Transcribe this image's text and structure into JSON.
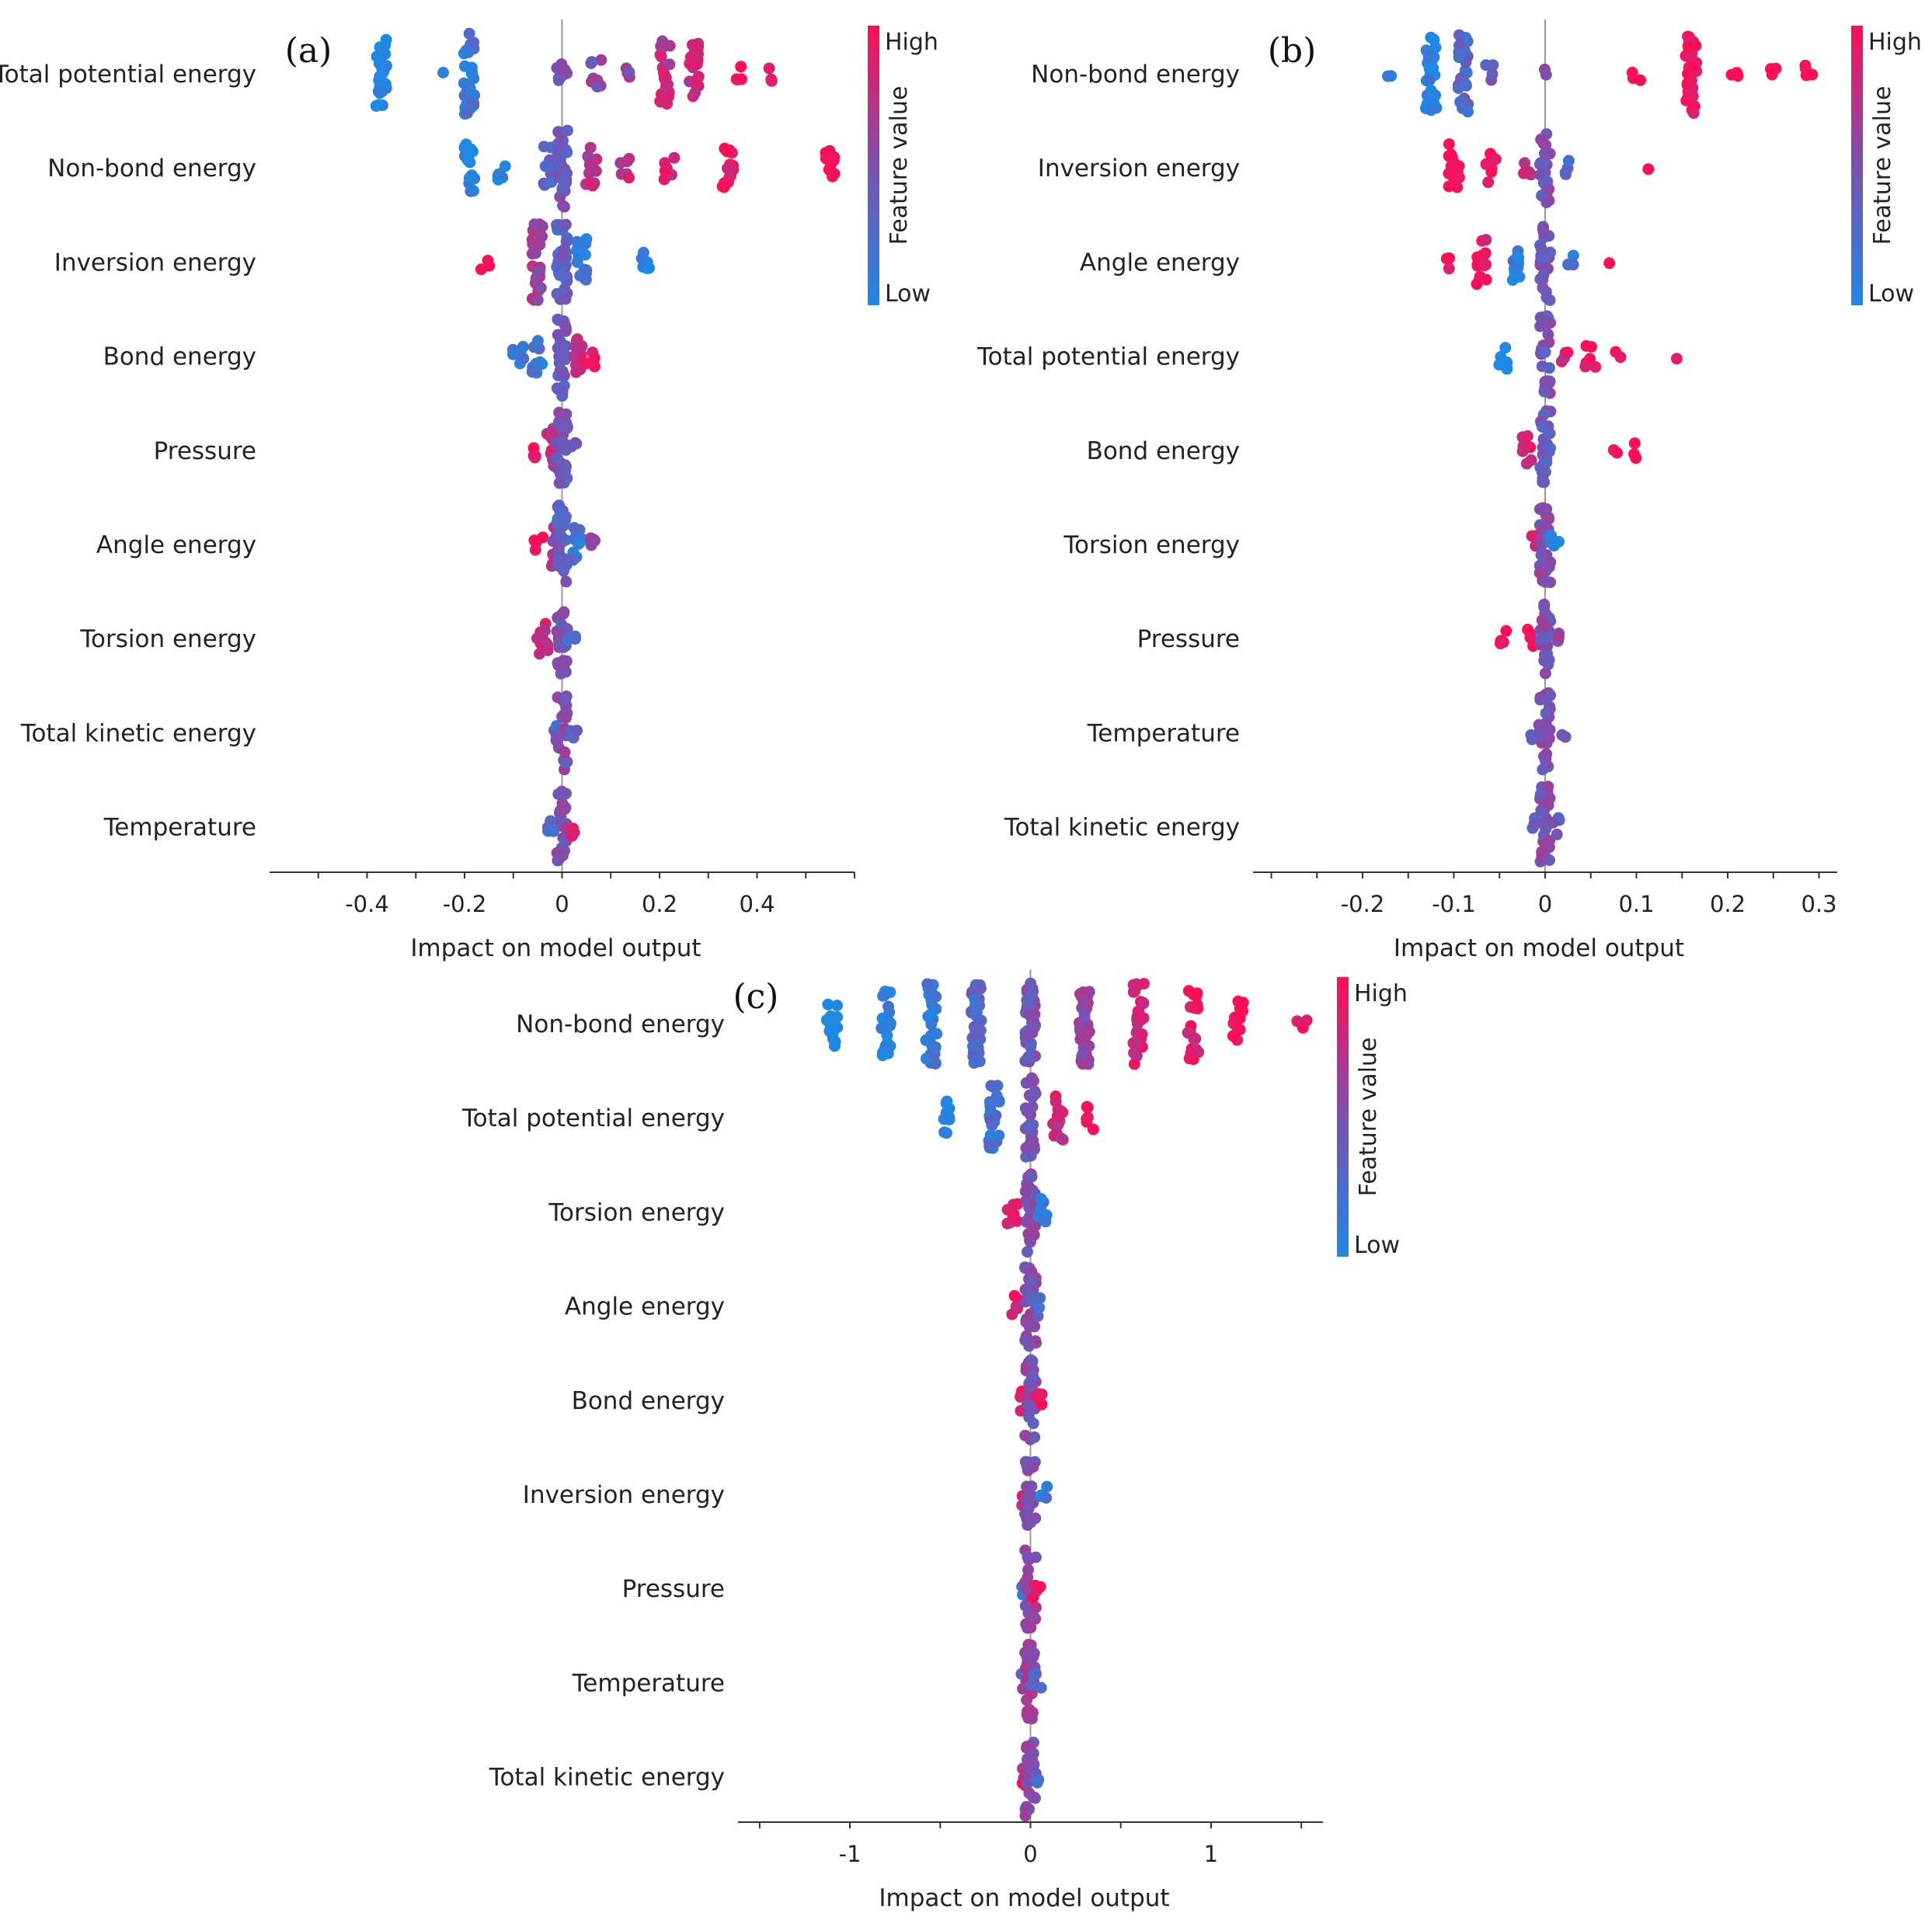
{
  "chart_data": [
    {
      "type": "scatter",
      "subtype": "beeswarm",
      "panel": "(a)",
      "xlabel": "Impact on model output",
      "xlim": [
        -0.6,
        0.6
      ],
      "xticks": [
        -0.4,
        -0.2,
        0,
        0.2,
        0.4
      ],
      "xtick_labels": [
        "-0.4",
        "-0.2",
        "0",
        "0.2",
        "0.4"
      ],
      "colorbar": {
        "title": "Feature value",
        "high": "High",
        "low": "Low"
      },
      "features": [
        {
          "name": "Total potential energy",
          "clusters": [
            [
              -0.37,
              0.0,
              26
            ],
            [
              -0.24,
              0.0,
              1
            ],
            [
              -0.19,
              0.15,
              30
            ],
            [
              0.0,
              0.5,
              8
            ],
            [
              0.07,
              0.55,
              8
            ],
            [
              0.14,
              0.6,
              4
            ],
            [
              0.21,
              0.75,
              22
            ],
            [
              0.27,
              0.8,
              20
            ],
            [
              0.36,
              0.95,
              4
            ],
            [
              0.42,
              1.0,
              3
            ]
          ]
        },
        {
          "name": "Non-bond energy",
          "clusters": [
            [
              -0.19,
              0.05,
              16
            ],
            [
              -0.12,
              0.05,
              6
            ],
            [
              -0.03,
              0.3,
              14
            ],
            [
              0.0,
              0.45,
              30
            ],
            [
              0.06,
              0.7,
              14
            ],
            [
              0.13,
              0.8,
              6
            ],
            [
              0.22,
              0.9,
              6
            ],
            [
              0.34,
              0.95,
              14
            ],
            [
              0.55,
              1.0,
              10
            ]
          ]
        },
        {
          "name": "Inversion energy",
          "clusters": [
            [
              -0.16,
              1.0,
              3
            ],
            [
              -0.05,
              0.65,
              30
            ],
            [
              0.0,
              0.35,
              40
            ],
            [
              0.04,
              0.15,
              16
            ],
            [
              0.17,
              0.0,
              7
            ]
          ]
        },
        {
          "name": "Bond energy",
          "clusters": [
            [
              -0.09,
              0.2,
              6
            ],
            [
              -0.05,
              0.15,
              10
            ],
            [
              0.0,
              0.4,
              32
            ],
            [
              0.03,
              0.8,
              10
            ],
            [
              0.06,
              0.9,
              5
            ]
          ]
        },
        {
          "name": "Pressure",
          "clusters": [
            [
              -0.06,
              1.0,
              4
            ],
            [
              -0.02,
              0.75,
              14
            ],
            [
              0.0,
              0.45,
              26
            ],
            [
              0.02,
              0.4,
              4
            ]
          ]
        },
        {
          "name": "Angle energy",
          "clusters": [
            [
              -0.05,
              1.0,
              4
            ],
            [
              -0.01,
              0.6,
              14
            ],
            [
              0.0,
              0.35,
              30
            ],
            [
              0.03,
              0.2,
              10
            ],
            [
              0.06,
              0.5,
              4
            ]
          ]
        },
        {
          "name": "Torsion energy",
          "clusters": [
            [
              -0.04,
              0.8,
              10
            ],
            [
              0.0,
              0.5,
              26
            ],
            [
              0.02,
              0.15,
              4
            ]
          ]
        },
        {
          "name": "Total kinetic energy",
          "clusters": [
            [
              -0.02,
              0.3,
              4
            ],
            [
              0.0,
              0.5,
              26
            ],
            [
              0.02,
              0.4,
              4
            ]
          ]
        },
        {
          "name": "Temperature",
          "clusters": [
            [
              -0.02,
              0.3,
              4
            ],
            [
              0.0,
              0.5,
              26
            ],
            [
              0.02,
              0.9,
              4
            ]
          ]
        }
      ]
    },
    {
      "type": "scatter",
      "subtype": "beeswarm",
      "panel": "(b)",
      "xlabel": "Impact on model output",
      "xlim": [
        -0.32,
        0.32
      ],
      "xticks": [
        -0.2,
        -0.1,
        0,
        0.1,
        0.2,
        0.3
      ],
      "xtick_labels": [
        "-0.2",
        "-0.1",
        "0",
        "0.1",
        "0.2",
        "0.3"
      ],
      "colorbar": {
        "title": "Feature value",
        "high": "High",
        "low": "Low"
      },
      "features": [
        {
          "name": "Non-bond energy",
          "clusters": [
            [
              -0.17,
              0.05,
              2
            ],
            [
              -0.125,
              0.05,
              30
            ],
            [
              -0.09,
              0.3,
              34
            ],
            [
              -0.06,
              0.35,
              4
            ],
            [
              0.0,
              0.5,
              2
            ],
            [
              0.1,
              1.0,
              3
            ],
            [
              0.16,
              0.95,
              34
            ],
            [
              0.21,
              1.0,
              3
            ],
            [
              0.25,
              1.0,
              3
            ],
            [
              0.29,
              1.0,
              4
            ]
          ]
        },
        {
          "name": "Inversion energy",
          "clusters": [
            [
              -0.1,
              1.0,
              16
            ],
            [
              -0.06,
              0.95,
              8
            ],
            [
              -0.02,
              0.8,
              4
            ],
            [
              0.0,
              0.45,
              26
            ],
            [
              0.02,
              0.3,
              4
            ],
            [
              0.11,
              1.0,
              1
            ]
          ]
        },
        {
          "name": "Angle energy",
          "clusters": [
            [
              -0.11,
              1.0,
              3
            ],
            [
              -0.07,
              0.95,
              14
            ],
            [
              -0.03,
              0.1,
              14
            ],
            [
              0.0,
              0.45,
              26
            ],
            [
              0.03,
              0.2,
              4
            ],
            [
              0.07,
              1.0,
              1
            ]
          ]
        },
        {
          "name": "Total potential energy",
          "clusters": [
            [
              -0.045,
              0.0,
              8
            ],
            [
              0.0,
              0.45,
              28
            ],
            [
              0.02,
              0.8,
              4
            ],
            [
              0.05,
              0.9,
              6
            ],
            [
              0.08,
              0.9,
              2
            ],
            [
              0.14,
              1.0,
              1
            ]
          ]
        },
        {
          "name": "Bond energy",
          "clusters": [
            [
              -0.02,
              0.85,
              8
            ],
            [
              0.0,
              0.4,
              28
            ],
            [
              0.08,
              1.0,
              2
            ],
            [
              0.1,
              1.0,
              3
            ]
          ]
        },
        {
          "name": "Torsion energy",
          "clusters": [
            [
              -0.01,
              0.9,
              4
            ],
            [
              0.0,
              0.5,
              28
            ],
            [
              0.01,
              0.1,
              4
            ]
          ]
        },
        {
          "name": "Pressure",
          "clusters": [
            [
              -0.045,
              1.0,
              4
            ],
            [
              -0.015,
              0.95,
              4
            ],
            [
              0.0,
              0.5,
              28
            ],
            [
              0.02,
              0.6,
              3
            ]
          ]
        },
        {
          "name": "Temperature",
          "clusters": [
            [
              -0.01,
              0.4,
              4
            ],
            [
              0.0,
              0.5,
              28
            ],
            [
              0.02,
              0.4,
              2
            ]
          ]
        },
        {
          "name": "Total kinetic energy",
          "clusters": [
            [
              -0.01,
              0.4,
              4
            ],
            [
              0.0,
              0.5,
              28
            ],
            [
              0.01,
              0.4,
              4
            ]
          ]
        }
      ]
    },
    {
      "type": "scatter",
      "subtype": "beeswarm",
      "panel": "(c)",
      "xlabel": "Impact on model output",
      "xlim": [
        -1.62,
        1.62
      ],
      "xticks": [
        -1,
        0,
        1
      ],
      "xtick_labels": [
        "-1",
        "0",
        "1"
      ],
      "colorbar": {
        "title": "Feature value",
        "high": "High",
        "low": "Low"
      },
      "features": [
        {
          "name": "Non-bond energy",
          "clusters": [
            [
              -1.1,
              0.0,
              14
            ],
            [
              -0.8,
              0.05,
              22
            ],
            [
              -0.55,
              0.12,
              30
            ],
            [
              -0.3,
              0.3,
              40
            ],
            [
              0.0,
              0.45,
              44
            ],
            [
              0.3,
              0.6,
              40
            ],
            [
              0.6,
              0.8,
              30
            ],
            [
              0.9,
              0.92,
              24
            ],
            [
              1.15,
              1.0,
              14
            ],
            [
              1.5,
              1.0,
              3
            ]
          ]
        },
        {
          "name": "Total potential energy",
          "clusters": [
            [
              -0.45,
              0.05,
              10
            ],
            [
              -0.2,
              0.2,
              22
            ],
            [
              0.0,
              0.45,
              36
            ],
            [
              0.15,
              0.8,
              14
            ],
            [
              0.32,
              0.95,
              6
            ]
          ]
        },
        {
          "name": "Torsion energy",
          "clusters": [
            [
              -0.1,
              0.9,
              8
            ],
            [
              0.0,
              0.5,
              30
            ],
            [
              0.06,
              0.1,
              8
            ]
          ]
        },
        {
          "name": "Angle energy",
          "clusters": [
            [
              -0.08,
              0.9,
              6
            ],
            [
              0.0,
              0.5,
              30
            ],
            [
              0.03,
              0.3,
              6
            ]
          ]
        },
        {
          "name": "Bond energy",
          "clusters": [
            [
              -0.05,
              0.9,
              6
            ],
            [
              0.0,
              0.5,
              30
            ],
            [
              0.06,
              0.9,
              4
            ]
          ]
        },
        {
          "name": "Inversion energy",
          "clusters": [
            [
              -0.02,
              0.85,
              6
            ],
            [
              0.0,
              0.5,
              30
            ],
            [
              0.07,
              0.1,
              4
            ]
          ]
        },
        {
          "name": "Pressure",
          "clusters": [
            [
              -0.03,
              0.3,
              4
            ],
            [
              0.0,
              0.6,
              30
            ],
            [
              0.03,
              0.9,
              4
            ]
          ]
        },
        {
          "name": "Temperature",
          "clusters": [
            [
              -0.02,
              0.5,
              4
            ],
            [
              0.0,
              0.6,
              30
            ],
            [
              0.03,
              0.3,
              4
            ]
          ]
        },
        {
          "name": "Total kinetic energy",
          "clusters": [
            [
              -0.03,
              0.9,
              4
            ],
            [
              0.0,
              0.5,
              30
            ],
            [
              0.02,
              0.3,
              4
            ]
          ]
        }
      ]
    }
  ],
  "colors": {
    "high": "#ff0d57",
    "low": "#1e88e5",
    "zero_line": "#999999",
    "axis": "#333333",
    "text": "#222222"
  }
}
